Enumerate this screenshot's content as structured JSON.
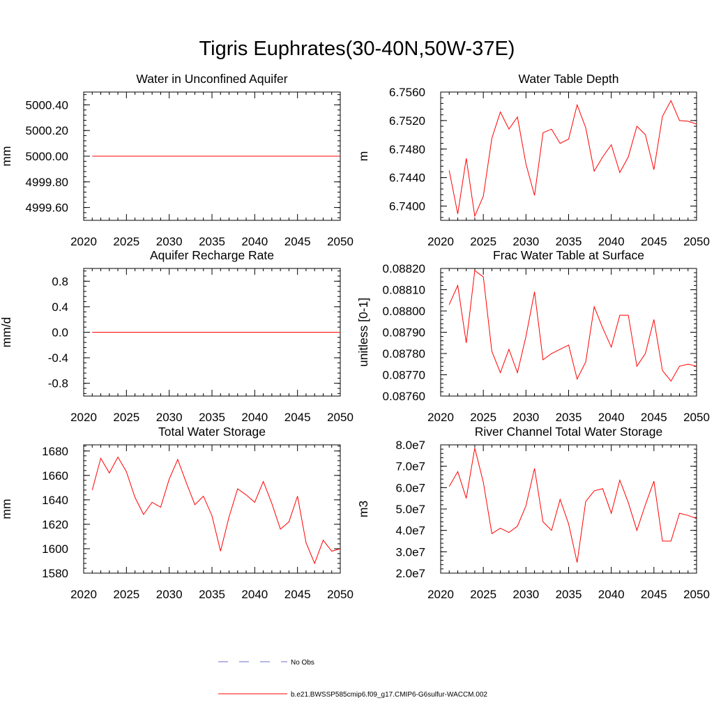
{
  "title": "Tigris Euphrates(30-40N,50W-37E)",
  "colors": {
    "model": "#ff0000",
    "obs": "#6e6ec8"
  },
  "legend": {
    "obs_label": "No Obs",
    "model_label": "b.e21.BWSSP585cmip6.f09_g17.CMIP6-G6sulfur-WACCM.002"
  },
  "chart_data": [
    {
      "type": "line",
      "title": "Water in Unconfined Aquifer",
      "ylabel": "mm",
      "xlim": [
        2020,
        2050
      ],
      "ylim": [
        4999.5,
        5000.5
      ],
      "xticks": [
        2020,
        2025,
        2030,
        2035,
        2040,
        2045,
        2050
      ],
      "xtick_labels": [
        "2020",
        "2025",
        "2030",
        "2035",
        "2040",
        "2045",
        "2050"
      ],
      "yticks": [
        4999.6,
        4999.8,
        5000.0,
        5000.2,
        5000.4
      ],
      "ytick_labels": [
        "4999.60",
        "4999.80",
        "5000.00",
        "5000.20",
        "5000.40"
      ],
      "x": [
        2021,
        2022,
        2023,
        2024,
        2025,
        2026,
        2027,
        2028,
        2029,
        2030,
        2031,
        2032,
        2033,
        2034,
        2035,
        2036,
        2037,
        2038,
        2039,
        2040,
        2041,
        2042,
        2043,
        2044,
        2045,
        2046,
        2047,
        2048,
        2049,
        2050
      ],
      "series": [
        {
          "values": [
            5000,
            5000,
            5000,
            5000,
            5000,
            5000,
            5000,
            5000,
            5000,
            5000,
            5000,
            5000,
            5000,
            5000,
            5000,
            5000,
            5000,
            5000,
            5000,
            5000,
            5000,
            5000,
            5000,
            5000,
            5000,
            5000,
            5000,
            5000,
            5000,
            5000
          ]
        }
      ]
    },
    {
      "type": "line",
      "title": "Water Table Depth",
      "ylabel": "m",
      "xlim": [
        2020,
        2050
      ],
      "ylim": [
        6.738,
        6.756
      ],
      "xticks": [
        2020,
        2025,
        2030,
        2035,
        2040,
        2045,
        2050
      ],
      "xtick_labels": [
        "2020",
        "2025",
        "2030",
        "2035",
        "2040",
        "2045",
        "2050"
      ],
      "yticks": [
        6.74,
        6.744,
        6.748,
        6.752,
        6.756
      ],
      "ytick_labels": [
        "6.7400",
        "6.7440",
        "6.7480",
        "6.7520",
        "6.7560"
      ],
      "x": [
        2021,
        2022,
        2023,
        2024,
        2025,
        2026,
        2027,
        2028,
        2029,
        2030,
        2031,
        2032,
        2033,
        2034,
        2035,
        2036,
        2037,
        2038,
        2039,
        2040,
        2041,
        2042,
        2043,
        2044,
        2045,
        2046,
        2047,
        2048,
        2049,
        2050
      ],
      "series": [
        {
          "values": [
            6.745,
            6.7389,
            6.7467,
            6.7386,
            6.7414,
            6.7495,
            6.7532,
            6.7508,
            6.7525,
            6.7459,
            6.7415,
            6.7503,
            6.7508,
            6.7488,
            6.7494,
            6.7542,
            6.751,
            6.7449,
            6.7469,
            6.7486,
            6.7447,
            6.7469,
            6.7512,
            6.75,
            6.7451,
            6.7526,
            6.7548,
            6.752,
            6.7519,
            6.7515
          ]
        }
      ]
    },
    {
      "type": "line",
      "title": "Aquifer Recharge Rate",
      "ylabel": "mm/d",
      "xlim": [
        2020,
        2050
      ],
      "ylim": [
        -1.0,
        1.0
      ],
      "xticks": [
        2020,
        2025,
        2030,
        2035,
        2040,
        2045,
        2050
      ],
      "xtick_labels": [
        "2020",
        "2025",
        "2030",
        "2035",
        "2040",
        "2045",
        "2050"
      ],
      "yticks": [
        -0.8,
        -0.4,
        0.0,
        0.4,
        0.8
      ],
      "ytick_labels": [
        "-0.8",
        "-0.4",
        "0.0",
        "0.4",
        "0.8"
      ],
      "x": [
        2021,
        2022,
        2023,
        2024,
        2025,
        2026,
        2027,
        2028,
        2029,
        2030,
        2031,
        2032,
        2033,
        2034,
        2035,
        2036,
        2037,
        2038,
        2039,
        2040,
        2041,
        2042,
        2043,
        2044,
        2045,
        2046,
        2047,
        2048,
        2049,
        2050
      ],
      "series": [
        {
          "values": [
            0,
            0,
            0,
            0,
            0,
            0,
            0,
            0,
            0,
            0,
            0,
            0,
            0,
            0,
            0,
            0,
            0,
            0,
            0,
            0,
            0,
            0,
            0,
            0,
            0,
            0,
            0,
            0,
            0,
            0
          ]
        }
      ]
    },
    {
      "type": "line",
      "title": "Frac Water Table at Surface",
      "ylabel": "unitless [0-1]",
      "xlim": [
        2020,
        2050
      ],
      "ylim": [
        0.0876,
        0.0882
      ],
      "xticks": [
        2020,
        2025,
        2030,
        2035,
        2040,
        2045,
        2050
      ],
      "xtick_labels": [
        "2020",
        "2025",
        "2030",
        "2035",
        "2040",
        "2045",
        "2050"
      ],
      "yticks": [
        0.0876,
        0.0877,
        0.0878,
        0.0879,
        0.088,
        0.0881,
        0.0882
      ],
      "ytick_labels": [
        "0.08760",
        "0.08770",
        "0.08780",
        "0.08790",
        "0.08800",
        "0.08810",
        "0.08820"
      ],
      "x": [
        2021,
        2022,
        2023,
        2024,
        2025,
        2026,
        2027,
        2028,
        2029,
        2030,
        2031,
        2032,
        2033,
        2034,
        2035,
        2036,
        2037,
        2038,
        2039,
        2040,
        2041,
        2042,
        2043,
        2044,
        2045,
        2046,
        2047,
        2048,
        2049,
        2050
      ],
      "series": [
        {
          "values": [
            0.08803,
            0.08812,
            0.08785,
            0.08819,
            0.08816,
            0.08781,
            0.08771,
            0.08782,
            0.08771,
            0.08788,
            0.08809,
            0.08777,
            0.0878,
            0.08782,
            0.08784,
            0.08768,
            0.08776,
            0.08802,
            0.08792,
            0.08783,
            0.08798,
            0.08798,
            0.08774,
            0.0878,
            0.08796,
            0.08772,
            0.08767,
            0.08774,
            0.08775,
            0.08774
          ]
        }
      ]
    },
    {
      "type": "line",
      "title": "Total Water Storage",
      "ylabel": "mm",
      "xlim": [
        2020,
        2050
      ],
      "ylim": [
        1580,
        1685
      ],
      "xticks": [
        2020,
        2025,
        2030,
        2035,
        2040,
        2045,
        2050
      ],
      "xtick_labels": [
        "2020",
        "2025",
        "2030",
        "2035",
        "2040",
        "2045",
        "2050"
      ],
      "yticks": [
        1580,
        1600,
        1620,
        1640,
        1660,
        1680
      ],
      "ytick_labels": [
        "1580",
        "1600",
        "1620",
        "1640",
        "1660",
        "1680"
      ],
      "x": [
        2021,
        2022,
        2023,
        2024,
        2025,
        2026,
        2027,
        2028,
        2029,
        2030,
        2031,
        2032,
        2033,
        2034,
        2035,
        2036,
        2037,
        2038,
        2039,
        2040,
        2041,
        2042,
        2043,
        2044,
        2045,
        2046,
        2047,
        2048,
        2049,
        2050
      ],
      "series": [
        {
          "values": [
            1648,
            1674,
            1662,
            1675,
            1663,
            1642,
            1628,
            1638,
            1634,
            1657,
            1673,
            1654,
            1636,
            1643,
            1627,
            1598,
            1626,
            1649,
            1644,
            1638,
            1655,
            1637,
            1616,
            1622,
            1643,
            1605,
            1588,
            1607,
            1598,
            1600
          ]
        }
      ]
    },
    {
      "type": "line",
      "title": "River Channel Total Water Storage",
      "ylabel": "m3",
      "xlim": [
        2020,
        2050
      ],
      "ylim": [
        20000000,
        80000000
      ],
      "xticks": [
        2020,
        2025,
        2030,
        2035,
        2040,
        2045,
        2050
      ],
      "xtick_labels": [
        "2020",
        "2025",
        "2030",
        "2035",
        "2040",
        "2045",
        "2050"
      ],
      "yticks": [
        20000000,
        30000000,
        40000000,
        50000000,
        60000000,
        70000000,
        80000000
      ],
      "ytick_labels": [
        "2.0e7",
        "3.0e7",
        "4.0e7",
        "5.0e7",
        "6.0e7",
        "7.0e7",
        "8.0e7"
      ],
      "x": [
        2021,
        2022,
        2023,
        2024,
        2025,
        2026,
        2027,
        2028,
        2029,
        2030,
        2031,
        2032,
        2033,
        2034,
        2035,
        2036,
        2037,
        2038,
        2039,
        2040,
        2041,
        2042,
        2043,
        2044,
        2045,
        2046,
        2047,
        2048,
        2049,
        2050
      ],
      "series": [
        {
          "values": [
            60500000,
            67500000,
            55000000,
            78500000,
            62500000,
            38500000,
            41000000,
            39000000,
            42000000,
            51500000,
            69000000,
            44000000,
            40000000,
            54500000,
            43000000,
            25000000,
            53500000,
            58500000,
            59500000,
            48000000,
            63500000,
            53000000,
            40000000,
            52000000,
            63000000,
            35000000,
            35000000,
            48000000,
            47000000,
            45500000
          ]
        }
      ]
    }
  ]
}
